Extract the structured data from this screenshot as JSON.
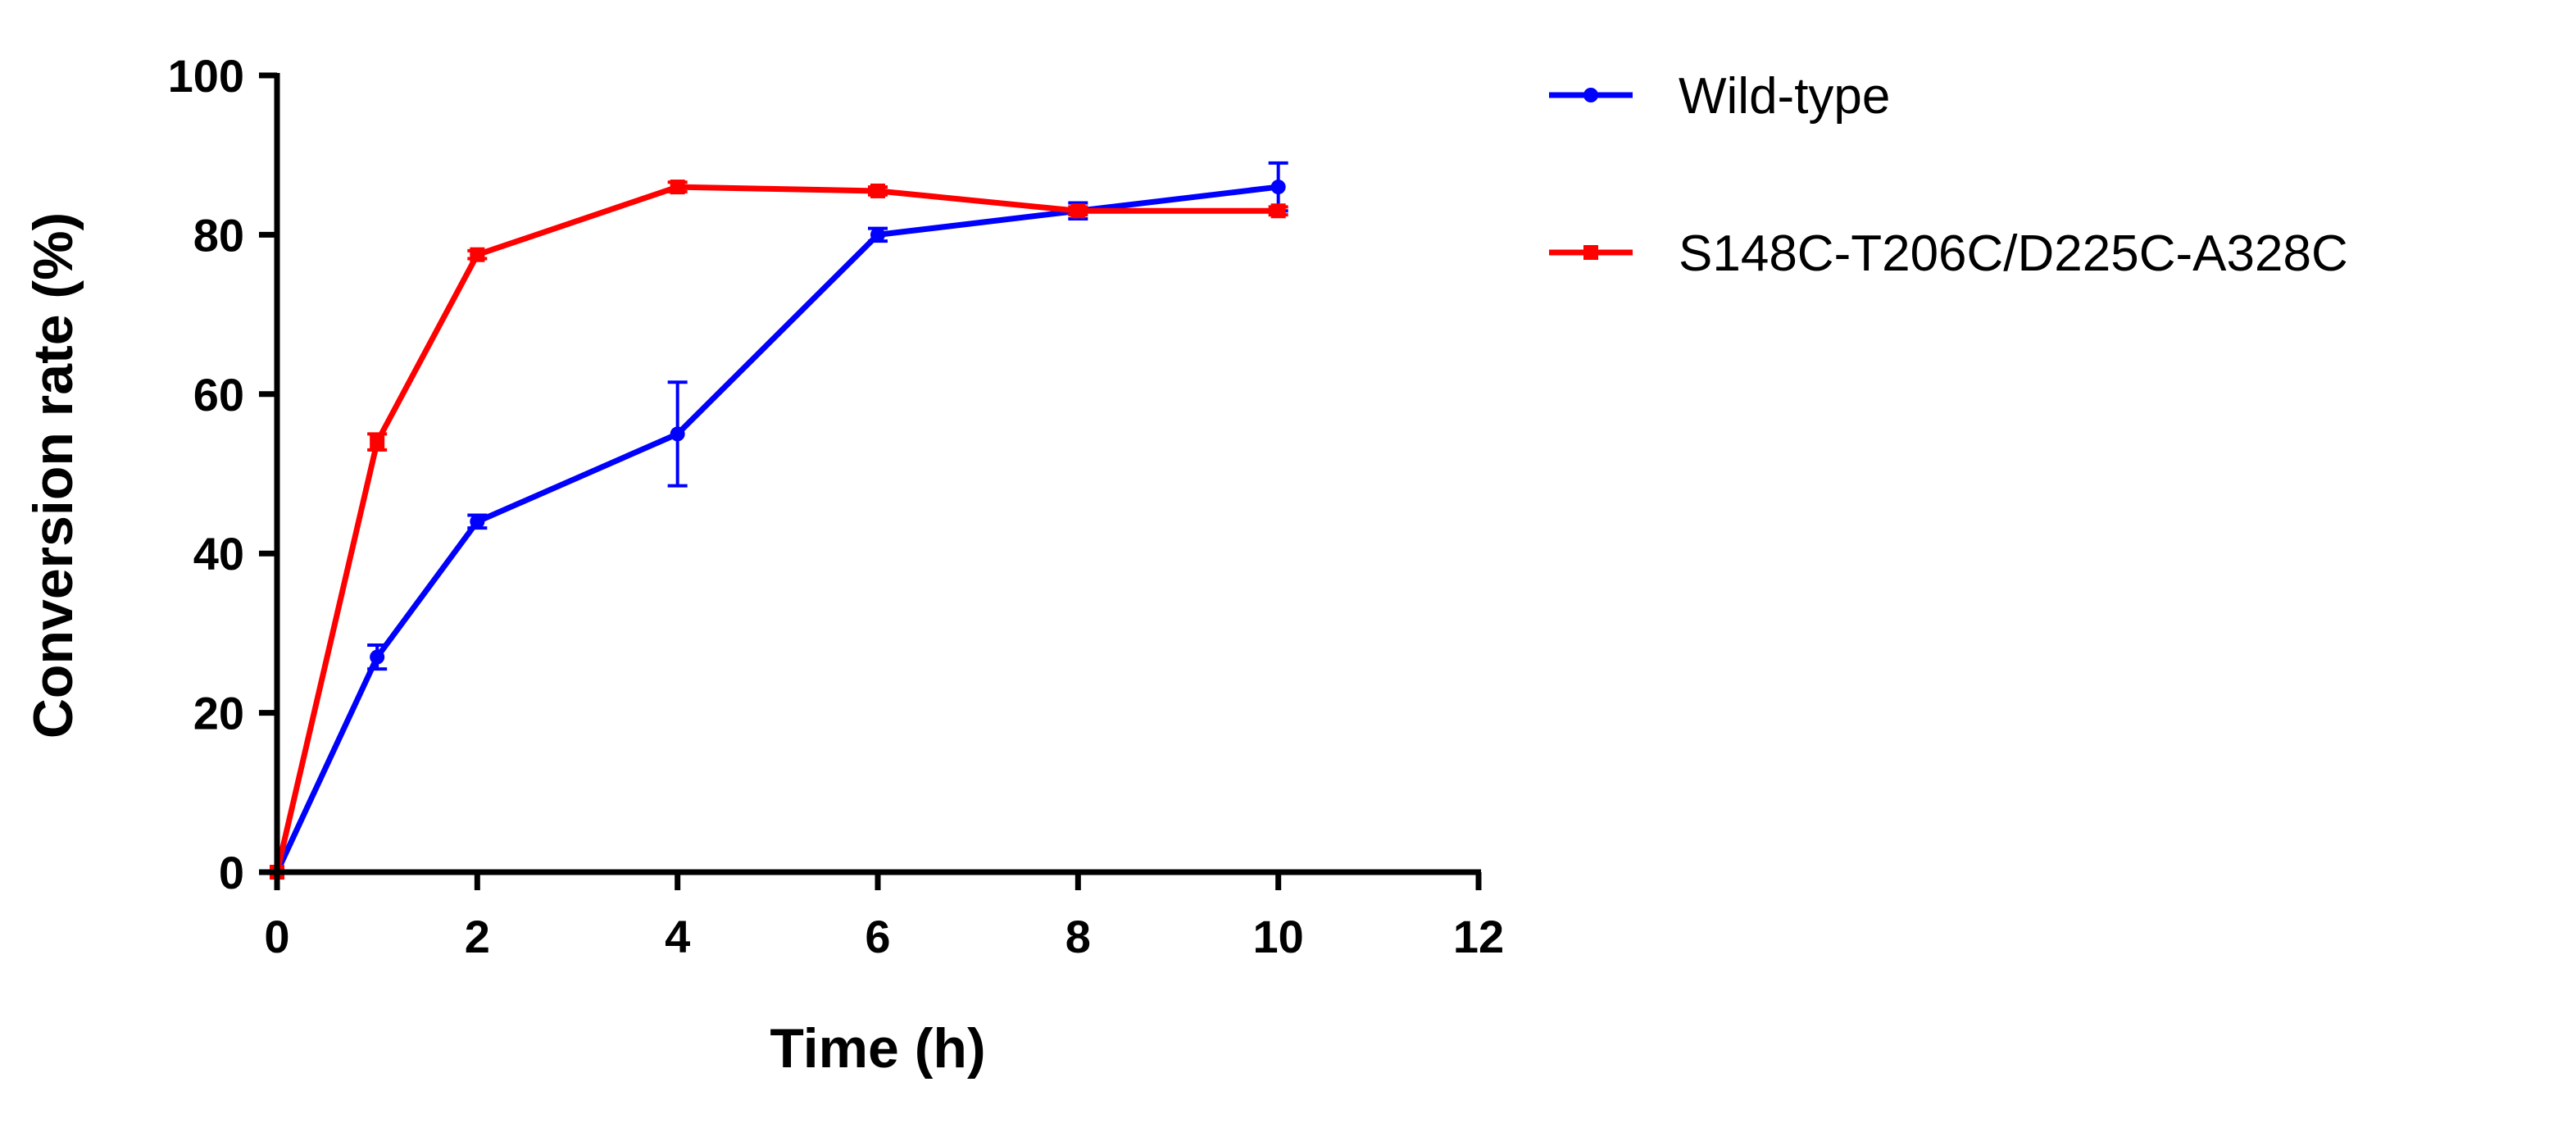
{
  "chart_data": {
    "type": "line",
    "title": "",
    "xlabel": "Time (h)",
    "ylabel": "Conversion rate (%)",
    "xlim": [
      0,
      12
    ],
    "ylim": [
      0,
      100
    ],
    "x_ticks": [
      "0",
      "2",
      "4",
      "6",
      "8",
      "10",
      "12"
    ],
    "y_ticks": [
      "0",
      "20",
      "40",
      "60",
      "80",
      "100"
    ],
    "grid": false,
    "legend_position": "right",
    "series": [
      {
        "name": "Wild-type",
        "color": "#0000ff",
        "marker": "circle",
        "points": [
          {
            "x": 0,
            "y": 0,
            "err": 0
          },
          {
            "x": 1,
            "y": 27,
            "err": 1.5
          },
          {
            "x": 2,
            "y": 44,
            "err": 0.8
          },
          {
            "x": 4,
            "y": 55,
            "err": 6.5
          },
          {
            "x": 6,
            "y": 80,
            "err": 0.8
          },
          {
            "x": 8,
            "y": 83,
            "err": 1.0
          },
          {
            "x": 10,
            "y": 86,
            "err": 3.0
          }
        ]
      },
      {
        "name": "S148C-T206C/D225C-A328C",
        "color": "#ff0000",
        "marker": "square",
        "points": [
          {
            "x": 0,
            "y": 0,
            "err": 0
          },
          {
            "x": 1,
            "y": 54,
            "err": 1.0
          },
          {
            "x": 2,
            "y": 77.5,
            "err": 0.5
          },
          {
            "x": 4,
            "y": 86,
            "err": 0.6
          },
          {
            "x": 6,
            "y": 85.5,
            "err": 0.5
          },
          {
            "x": 8,
            "y": 83,
            "err": 0.5
          },
          {
            "x": 10,
            "y": 83,
            "err": 0.5
          }
        ]
      }
    ]
  }
}
